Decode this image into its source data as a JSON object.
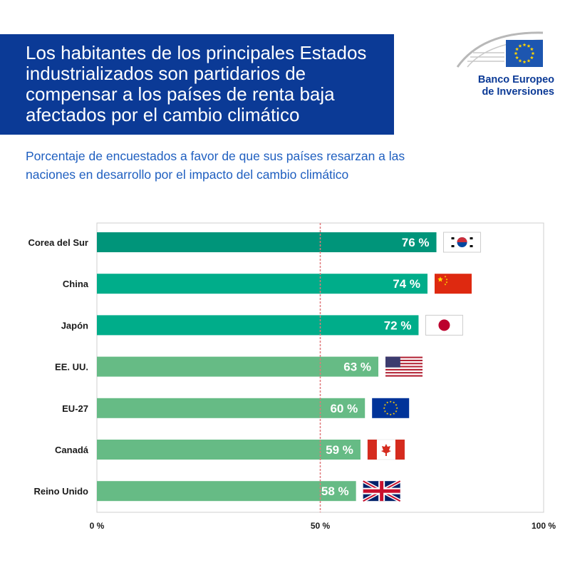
{
  "header": {
    "title": "Los habitantes de los principales Estados industrializados son partidarios de compensar a los países de renta baja afectados por el cambio climático",
    "subtitle": "Porcentaje de encuestados a favor de que sus países resarzan a las naciones en desarrollo por el impacto del cambio climático"
  },
  "logo": {
    "line1": "Banco Europeo",
    "line2": "de Inversiones",
    "brand_color": "#0b3a96",
    "flag_color": "#1d56b0",
    "star_color": "#ffd400"
  },
  "colors": {
    "dark_teal": "#00957a",
    "teal": "#00ad8a",
    "light_green": "#66bb85",
    "reference_line": "#e0787a"
  },
  "chart_data": {
    "type": "bar",
    "orientation": "horizontal",
    "title": "",
    "xlabel": "",
    "ylabel": "",
    "xlim": [
      0,
      100
    ],
    "ticks": [
      0,
      50,
      100
    ],
    "tick_labels": [
      "0 %",
      "50 %",
      "100 %"
    ],
    "reference_line": 50,
    "categories": [
      "Corea del Sur",
      "China",
      "Japón",
      "EE. UU.",
      "EU-27",
      "Canadá",
      "Reino Unido"
    ],
    "values": [
      76,
      74,
      72,
      63,
      60,
      59,
      58
    ],
    "value_labels": [
      "76 %",
      "74 %",
      "72 %",
      "63 %",
      "60 %",
      "59 %",
      "58 %"
    ],
    "bar_colors": [
      "#00957a",
      "#00ad8a",
      "#00ad8a",
      "#66bb85",
      "#66bb85",
      "#66bb85",
      "#66bb85"
    ],
    "flags": [
      "south-korea-flag-icon",
      "china-flag-icon",
      "japan-flag-icon",
      "usa-flag-icon",
      "eu-flag-icon",
      "canada-flag-icon",
      "uk-flag-icon"
    ]
  }
}
